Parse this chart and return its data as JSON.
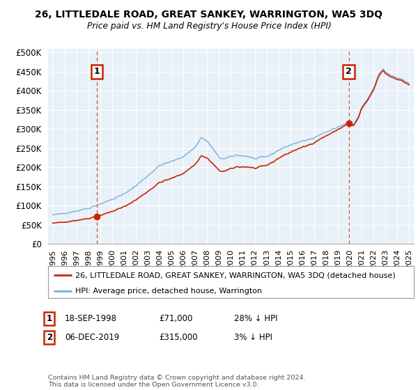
{
  "title": "26, LITTLEDALE ROAD, GREAT SANKEY, WARRINGTON, WA5 3DQ",
  "subtitle": "Price paid vs. HM Land Registry's House Price Index (HPI)",
  "ylabel_ticks": [
    0,
    50000,
    100000,
    150000,
    200000,
    250000,
    300000,
    350000,
    400000,
    450000,
    500000
  ],
  "ylabel_labels": [
    "£0",
    "£50K",
    "£100K",
    "£150K",
    "£200K",
    "£250K",
    "£300K",
    "£350K",
    "£400K",
    "£450K",
    "£500K"
  ],
  "ylim": [
    0,
    510000
  ],
  "xlim_start": 1994.6,
  "xlim_end": 2025.4,
  "red_color": "#cc2200",
  "blue_color": "#7ab0d4",
  "background_color": "#ffffff",
  "plot_bg_color": "#e8f0f8",
  "grid_color": "#ffffff",
  "sale1_year": 1998.72,
  "sale1_price": 71000,
  "sale2_year": 2019.92,
  "sale2_price": 315000,
  "sale1_label": "1",
  "sale2_label": "2",
  "legend_red": "26, LITTLEDALE ROAD, GREAT SANKEY, WARRINGTON, WA5 3DQ (detached house)",
  "legend_blue": "HPI: Average price, detached house, Warrington",
  "note1_num": "1",
  "note1_date": "18-SEP-1998",
  "note1_price": "£71,000",
  "note1_hpi": "28% ↓ HPI",
  "note2_num": "2",
  "note2_date": "06-DEC-2019",
  "note2_price": "£315,000",
  "note2_hpi": "3% ↓ HPI",
  "copyright": "Contains HM Land Registry data © Crown copyright and database right 2024.\nThis data is licensed under the Open Government Licence v3.0."
}
